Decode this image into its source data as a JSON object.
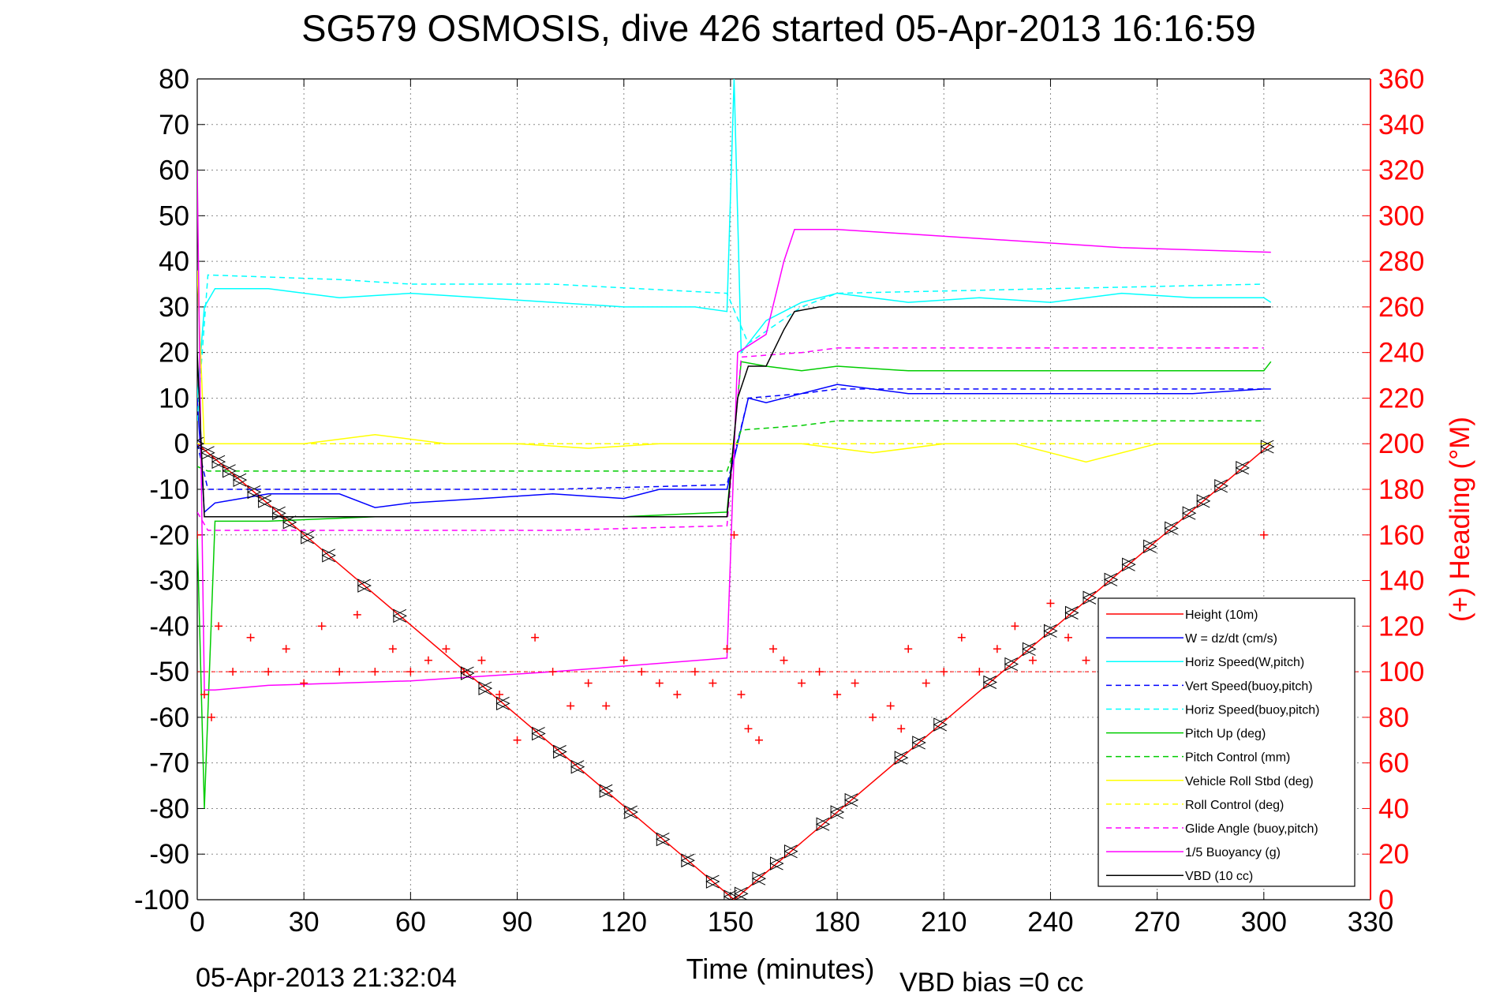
{
  "chart_data": {
    "type": "line",
    "title": "SG579 OSMOSIS, dive 426 started 05-Apr-2013 16:16:59",
    "xlabel": "Time (minutes)",
    "ylabel_right": "(+) Heading (°M)",
    "footer_left": "05-Apr-2013 21:32:04",
    "footer_right": "VBD bias =0 cc",
    "xlim": [
      0,
      330
    ],
    "ylim": [
      -100,
      80
    ],
    "ylim_right": [
      0,
      360
    ],
    "x_ticks": [
      "0",
      "30",
      "60",
      "90",
      "120",
      "150",
      "180",
      "210",
      "240",
      "270",
      "300",
      "330"
    ],
    "y_ticks": [
      "80",
      "70",
      "60",
      "50",
      "40",
      "30",
      "20",
      "10",
      "0",
      "-10",
      "-20",
      "-30",
      "-40",
      "-50",
      "-60",
      "-70",
      "-80",
      "-90",
      "-100"
    ],
    "y_ticks_right": [
      "360",
      "340",
      "320",
      "300",
      "280",
      "260",
      "240",
      "220",
      "200",
      "180",
      "160",
      "140",
      "120",
      "100",
      "80",
      "60",
      "40",
      "20",
      "0"
    ],
    "grid": true,
    "legend_position": "bottom-right",
    "right_axis_color": "#ff0000",
    "series": [
      {
        "name": "Height (10m)",
        "color": "#ff0000",
        "style": "solid",
        "x": [
          0,
          151,
          302
        ],
        "y": [
          0,
          -100,
          0
        ]
      },
      {
        "name": "W = dz/dt (cm/s)",
        "color": "#0000ff",
        "style": "solid",
        "x": [
          0,
          2,
          5,
          20,
          40,
          50,
          60,
          80,
          100,
          120,
          130,
          149,
          152,
          155,
          160,
          170,
          180,
          200,
          240,
          280,
          300,
          302
        ],
        "y": [
          10,
          -15,
          -13,
          -11,
          -11,
          -14,
          -13,
          -12,
          -11,
          -12,
          -10,
          -10,
          0,
          10,
          9,
          11,
          13,
          11,
          11,
          11,
          12,
          12
        ]
      },
      {
        "name": "Horiz Speed(W,pitch)",
        "color": "#00ffff",
        "style": "solid",
        "x": [
          0,
          2,
          5,
          20,
          40,
          60,
          80,
          100,
          120,
          140,
          149,
          151,
          153,
          160,
          170,
          180,
          200,
          220,
          240,
          260,
          280,
          300,
          302
        ],
        "y": [
          10,
          30,
          34,
          34,
          32,
          33,
          32,
          31,
          30,
          30,
          29,
          80,
          20,
          27,
          31,
          33,
          31,
          32,
          31,
          33,
          32,
          32,
          31
        ]
      },
      {
        "name": "Vert Speed(buoy,pitch)",
        "color": "#0000ff",
        "style": "dashed",
        "x": [
          0,
          3,
          40,
          60,
          100,
          149,
          155,
          170,
          180,
          300
        ],
        "y": [
          0,
          -10,
          -10,
          -10,
          -10,
          -9,
          10,
          11,
          12,
          12
        ]
      },
      {
        "name": "Horiz Speed(buoy,pitch)",
        "color": "#00ffff",
        "style": "dashed",
        "x": [
          0,
          3,
          40,
          60,
          100,
          149,
          155,
          170,
          180,
          300
        ],
        "y": [
          5,
          37,
          36,
          35,
          35,
          33,
          22,
          30,
          33,
          35
        ]
      },
      {
        "name": "Pitch Up (deg)",
        "color": "#00cc00",
        "style": "solid",
        "x": [
          0,
          2,
          5,
          20,
          50,
          80,
          120,
          149,
          153,
          160,
          170,
          180,
          200,
          240,
          300,
          302
        ],
        "y": [
          -20,
          -80,
          -17,
          -17,
          -16,
          -16,
          -16,
          -15,
          18,
          17,
          16,
          17,
          16,
          16,
          16,
          18
        ]
      },
      {
        "name": "Pitch Control (mm)",
        "color": "#00cc00",
        "style": "dashed",
        "x": [
          0,
          3,
          60,
          100,
          149,
          153,
          170,
          180,
          300
        ],
        "y": [
          -5,
          -6,
          -6,
          -6,
          -6,
          3,
          4,
          5,
          5
        ]
      },
      {
        "name": "Vehicle Roll Stbd (deg)",
        "color": "#ffff00",
        "style": "solid",
        "x": [
          0,
          2,
          10,
          30,
          50,
          70,
          90,
          110,
          130,
          149,
          152,
          170,
          190,
          210,
          230,
          250,
          270,
          290,
          302
        ],
        "y": [
          38,
          0,
          0,
          0,
          2,
          0,
          0,
          -1,
          0,
          0,
          0,
          0,
          -2,
          0,
          0,
          -4,
          0,
          0,
          0
        ]
      },
      {
        "name": "Roll Control (deg)",
        "color": "#ffff00",
        "style": "dashed",
        "x": [
          0,
          5,
          30,
          60,
          90,
          120,
          149,
          152,
          180,
          210,
          240,
          270,
          302
        ],
        "y": [
          0,
          0,
          0,
          0,
          0,
          0,
          0,
          0,
          0,
          0,
          0,
          0,
          0
        ]
      },
      {
        "name": "Glide Angle (buoy,pitch)",
        "color": "#ff00ff",
        "style": "dashed",
        "x": [
          0,
          3,
          40,
          60,
          100,
          149,
          153,
          170,
          180,
          300
        ],
        "y": [
          -15,
          -19,
          -19,
          -19,
          -19,
          -18,
          19,
          20,
          21,
          21
        ]
      },
      {
        "name": "1/5 Buoyancy (g)",
        "color": "#ff00ff",
        "style": "solid",
        "x": [
          0,
          1,
          2,
          5,
          20,
          60,
          100,
          149,
          152,
          160,
          165,
          168,
          180,
          220,
          260,
          302
        ],
        "y": [
          60,
          0,
          -54,
          -54,
          -53,
          -52,
          -50,
          -47,
          20,
          24,
          40,
          47,
          47,
          45,
          43,
          42
        ]
      },
      {
        "name": "VBD (10 cc)",
        "color": "#000000",
        "style": "solid",
        "x": [
          0,
          2,
          5,
          60,
          100,
          149,
          152,
          155,
          160,
          165,
          168,
          175,
          300,
          302
        ],
        "y": [
          20,
          -16,
          -16,
          -16,
          -16,
          -16,
          10,
          17,
          17,
          25,
          29,
          30,
          30,
          30
        ]
      }
    ],
    "heading_series": {
      "name": "Heading",
      "color": "#ff0000",
      "marker": "+",
      "axis": "right",
      "x": [
        0,
        2,
        4,
        6,
        10,
        15,
        20,
        25,
        30,
        35,
        40,
        45,
        50,
        55,
        60,
        65,
        70,
        75,
        80,
        85,
        90,
        95,
        100,
        105,
        110,
        115,
        120,
        125,
        130,
        135,
        140,
        145,
        149,
        151,
        153,
        155,
        158,
        162,
        165,
        170,
        175,
        180,
        185,
        190,
        195,
        198,
        200,
        205,
        210,
        215,
        220,
        225,
        230,
        235,
        240,
        245,
        250,
        255,
        260,
        265,
        270,
        275,
        280,
        285,
        290,
        295,
        300
      ],
      "y": [
        160,
        90,
        80,
        120,
        100,
        115,
        100,
        110,
        95,
        120,
        100,
        125,
        100,
        110,
        100,
        105,
        110,
        100,
        105,
        90,
        70,
        115,
        100,
        85,
        95,
        85,
        105,
        100,
        95,
        90,
        100,
        95,
        110,
        160,
        90,
        75,
        70,
        110,
        105,
        95,
        100,
        90,
        95,
        80,
        85,
        75,
        110,
        95,
        100,
        115,
        100,
        110,
        120,
        105,
        130,
        115,
        105,
        110,
        95,
        100,
        110,
        115,
        100,
        105,
        110,
        100,
        160
      ]
    },
    "heading_target": {
      "color": "#ff0000",
      "style": "dashed",
      "value": 100
    },
    "waypoint_markers": {
      "color": "#000000",
      "x": [
        0,
        3,
        6,
        9,
        12,
        16,
        19,
        23,
        26,
        31,
        37,
        47,
        57,
        76,
        81,
        86,
        96,
        102,
        107,
        115,
        122,
        131,
        138,
        145,
        150,
        153,
        158,
        163,
        167,
        176,
        180,
        184,
        198,
        203,
        209,
        223,
        229,
        234,
        240,
        246,
        251,
        257,
        262,
        268,
        274,
        279,
        283,
        288,
        294,
        301
      ]
    }
  }
}
